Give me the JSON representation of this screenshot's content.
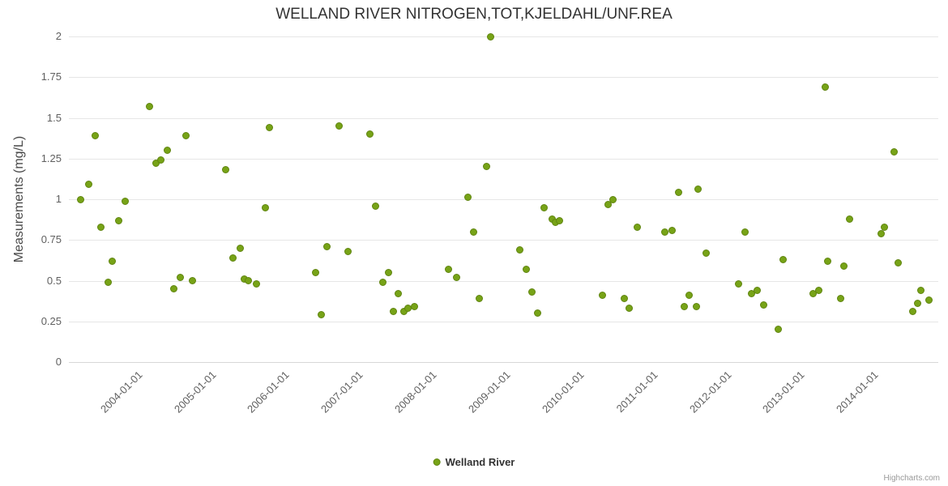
{
  "credits_label": "Highcharts.com",
  "chart_data": {
    "type": "scatter",
    "title": "WELLAND RIVER NITROGEN,TOT,KJELDAHL/UNF.REA",
    "xlabel": "",
    "ylabel": "Measurements (mg/L)",
    "ylim": [
      0,
      2
    ],
    "yticks": [
      0,
      0.25,
      0.5,
      0.75,
      1,
      1.25,
      1.5,
      1.75,
      2
    ],
    "ytick_labels": [
      "0",
      "0.25",
      "0.5",
      "0.75",
      "1",
      "1.25",
      "1.5",
      "1.75",
      "2"
    ],
    "xlim": [
      2003.09,
      2014.9
    ],
    "xticks": [
      2004,
      2005,
      2006,
      2007,
      2008,
      2009,
      2010,
      2011,
      2012,
      2013,
      2014
    ],
    "xtick_labels": [
      "2004-01-01",
      "2005-01-01",
      "2006-01-01",
      "2007-01-01",
      "2008-01-01",
      "2009-01-01",
      "2010-01-01",
      "2011-01-01",
      "2012-01-01",
      "2013-01-01",
      "2014-01-01"
    ],
    "grid": true,
    "legend": {
      "position": "bottom"
    },
    "series": [
      {
        "name": "Welland River",
        "color": "#77a317",
        "points": [
          [
            2003.25,
            1.0
          ],
          [
            2003.36,
            1.09
          ],
          [
            2003.45,
            1.39
          ],
          [
            2003.53,
            0.83
          ],
          [
            2003.62,
            0.49
          ],
          [
            2003.68,
            0.62
          ],
          [
            2003.77,
            0.87
          ],
          [
            2003.86,
            0.99
          ],
          [
            2004.18,
            1.57
          ],
          [
            2004.27,
            1.22
          ],
          [
            2004.34,
            1.24
          ],
          [
            2004.43,
            1.3
          ],
          [
            2004.52,
            0.45
          ],
          [
            2004.6,
            0.52
          ],
          [
            2004.68,
            1.39
          ],
          [
            2004.77,
            0.5
          ],
          [
            2005.22,
            1.18
          ],
          [
            2005.32,
            0.64
          ],
          [
            2005.42,
            0.7
          ],
          [
            2005.47,
            0.51
          ],
          [
            2005.53,
            0.5
          ],
          [
            2005.64,
            0.48
          ],
          [
            2005.76,
            0.95
          ],
          [
            2005.81,
            1.44
          ],
          [
            2006.44,
            0.55
          ],
          [
            2006.52,
            0.29
          ],
          [
            2006.6,
            0.71
          ],
          [
            2006.76,
            1.45
          ],
          [
            2006.88,
            0.68
          ],
          [
            2007.18,
            1.4
          ],
          [
            2007.26,
            0.96
          ],
          [
            2007.36,
            0.49
          ],
          [
            2007.43,
            0.55
          ],
          [
            2007.5,
            0.31
          ],
          [
            2007.56,
            0.42
          ],
          [
            2007.64,
            0.31
          ],
          [
            2007.7,
            0.33
          ],
          [
            2007.78,
            0.34
          ],
          [
            2008.25,
            0.57
          ],
          [
            2008.36,
            0.52
          ],
          [
            2008.51,
            1.01
          ],
          [
            2008.59,
            0.8
          ],
          [
            2008.66,
            0.39
          ],
          [
            2008.76,
            1.2
          ],
          [
            2008.82,
            2.0
          ],
          [
            2009.22,
            0.69
          ],
          [
            2009.3,
            0.57
          ],
          [
            2009.38,
            0.43
          ],
          [
            2009.46,
            0.3
          ],
          [
            2009.55,
            0.95
          ],
          [
            2009.66,
            0.88
          ],
          [
            2009.7,
            0.86
          ],
          [
            2009.75,
            0.87
          ],
          [
            2010.34,
            0.41
          ],
          [
            2010.42,
            0.97
          ],
          [
            2010.48,
            1.0
          ],
          [
            2010.63,
            0.39
          ],
          [
            2010.7,
            0.33
          ],
          [
            2010.81,
            0.83
          ],
          [
            2011.19,
            0.8
          ],
          [
            2011.28,
            0.81
          ],
          [
            2011.37,
            1.04
          ],
          [
            2011.45,
            0.34
          ],
          [
            2011.52,
            0.41
          ],
          [
            2011.61,
            0.34
          ],
          [
            2011.64,
            1.06
          ],
          [
            2011.75,
            0.67
          ],
          [
            2012.19,
            0.48
          ],
          [
            2012.28,
            0.8
          ],
          [
            2012.36,
            0.42
          ],
          [
            2012.44,
            0.44
          ],
          [
            2012.53,
            0.35
          ],
          [
            2012.73,
            0.2
          ],
          [
            2012.79,
            0.63
          ],
          [
            2013.2,
            0.42
          ],
          [
            2013.28,
            0.44
          ],
          [
            2013.37,
            1.69
          ],
          [
            2013.4,
            0.62
          ],
          [
            2013.57,
            0.39
          ],
          [
            2013.62,
            0.59
          ],
          [
            2013.7,
            0.88
          ],
          [
            2014.12,
            0.79
          ],
          [
            2014.17,
            0.83
          ],
          [
            2014.3,
            1.29
          ],
          [
            2014.36,
            0.61
          ],
          [
            2014.55,
            0.31
          ],
          [
            2014.62,
            0.36
          ],
          [
            2014.66,
            0.44
          ],
          [
            2014.77,
            0.38
          ]
        ]
      }
    ]
  }
}
